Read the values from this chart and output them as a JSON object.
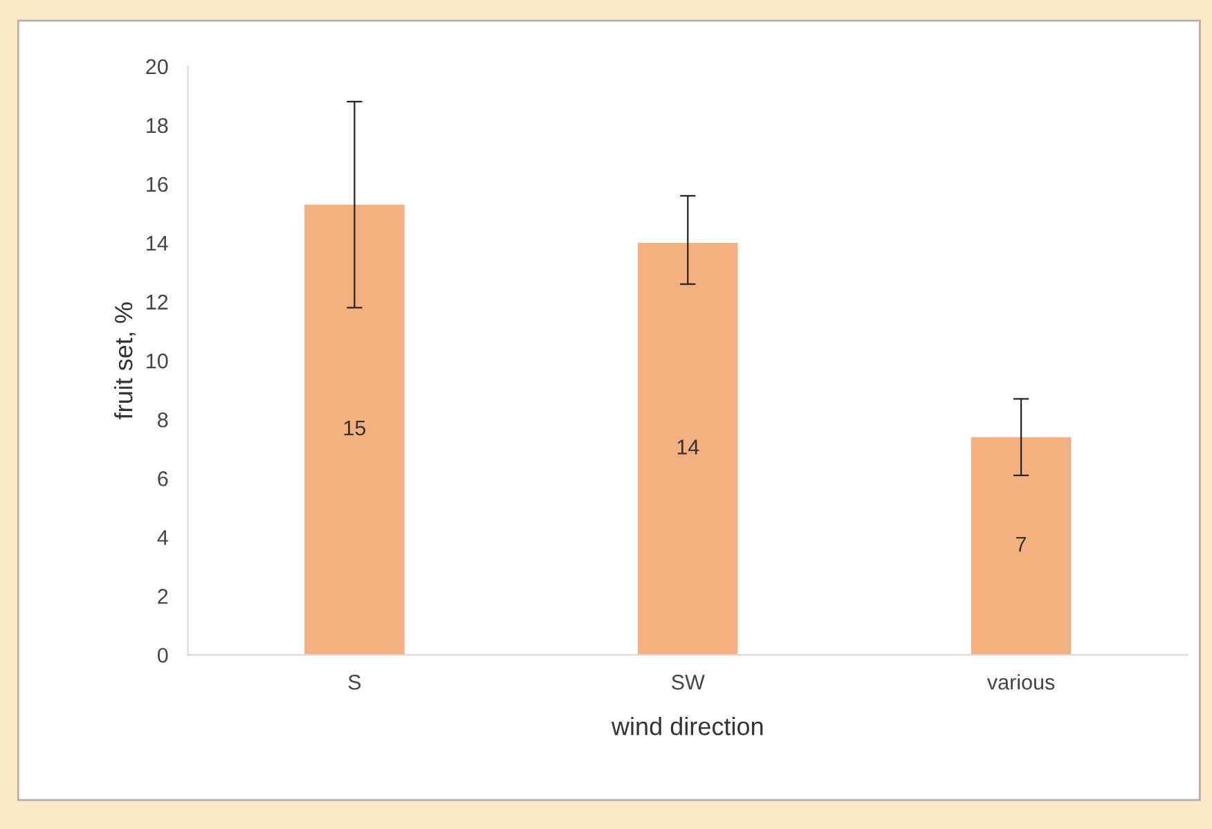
{
  "chart_data": {
    "type": "bar",
    "xlabel": "wind direction",
    "ylabel": "fruit set, %",
    "categories": [
      "S",
      "SW",
      "various"
    ],
    "values": [
      15.3,
      14.0,
      7.4
    ],
    "value_labels": [
      "15",
      "14",
      "7"
    ],
    "errors": [
      [
        11.8,
        18.8
      ],
      [
        12.6,
        15.6
      ],
      [
        6.1,
        8.7
      ]
    ],
    "color": "#f4b080",
    "ylim": [
      0,
      20
    ],
    "yticks": [
      0,
      2,
      4,
      6,
      8,
      10,
      12,
      14,
      16,
      18,
      20
    ],
    "grid": false,
    "legend": false
  }
}
